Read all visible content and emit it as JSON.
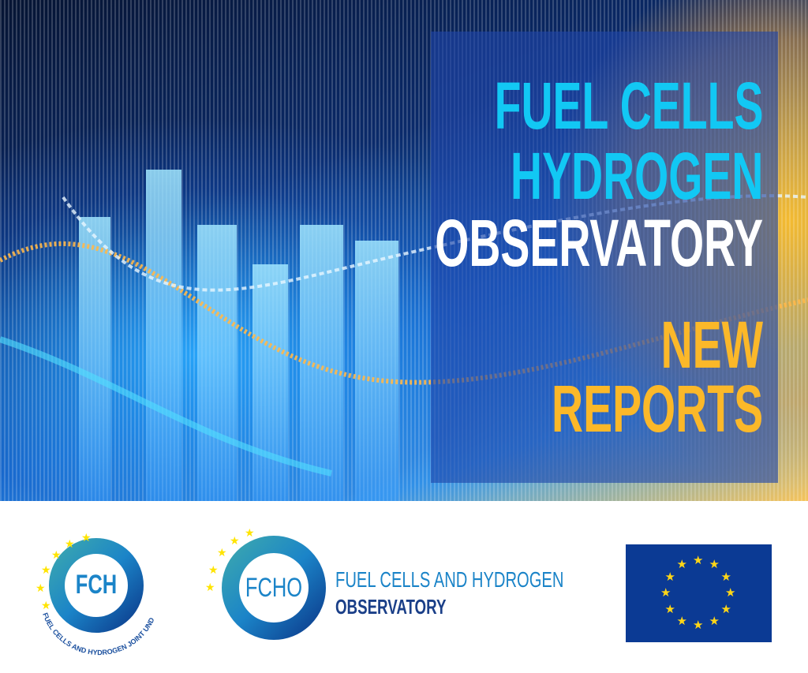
{
  "banner": {
    "line1": "FUEL CELLS",
    "line2": "HYDROGEN",
    "line3": "OBSERVATORY",
    "line4": "NEW",
    "line5": "REPORTS"
  },
  "logos": {
    "fch": {
      "initials": "FCH",
      "ring_text": "FUEL CELLS AND HYDROGEN JOINT UNDERTAKING"
    },
    "fcho": {
      "initials": "FCHO",
      "title_line1": "FUEL CELLS AND HYDROGEN",
      "title_line2": "OBSERVATORY"
    },
    "eu_flag": {
      "stars": 12
    }
  },
  "colors": {
    "cyan": "#12c8f4",
    "gold": "#fbb829",
    "navy": "#0b3a94",
    "teal": "#3aa6b0",
    "logo_blue": "#1b84c8"
  }
}
